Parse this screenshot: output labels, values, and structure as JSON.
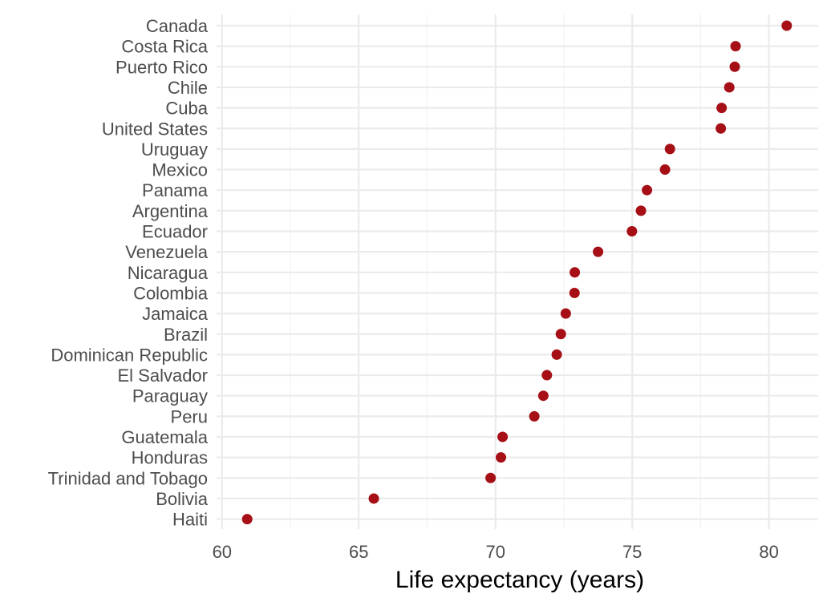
{
  "chart_data": {
    "type": "scatter",
    "title": "",
    "xlabel": "Life expectancy (years)",
    "ylabel": "",
    "xlim": [
      59.8,
      81.8
    ],
    "xticks": [
      60,
      65,
      70,
      75,
      80
    ],
    "xtick_labels": [
      "60",
      "65",
      "70",
      "75",
      "80"
    ],
    "grid": true,
    "point_color": "#a50f15",
    "categories": [
      "Canada",
      "Costa Rica",
      "Puerto Rico",
      "Chile",
      "Cuba",
      "United States",
      "Uruguay",
      "Mexico",
      "Panama",
      "Argentina",
      "Ecuador",
      "Venezuela",
      "Nicaragua",
      "Colombia",
      "Jamaica",
      "Brazil",
      "Dominican Republic",
      "El Salvador",
      "Paraguay",
      "Peru",
      "Guatemala",
      "Honduras",
      "Trinidad and Tobago",
      "Bolivia",
      "Haiti"
    ],
    "values": [
      80.65,
      78.78,
      78.75,
      78.55,
      78.27,
      78.24,
      76.38,
      76.2,
      75.54,
      75.32,
      74.99,
      73.75,
      72.9,
      72.89,
      72.57,
      72.39,
      72.24,
      71.88,
      71.75,
      71.42,
      70.26,
      70.2,
      69.82,
      65.55,
      60.92
    ]
  }
}
